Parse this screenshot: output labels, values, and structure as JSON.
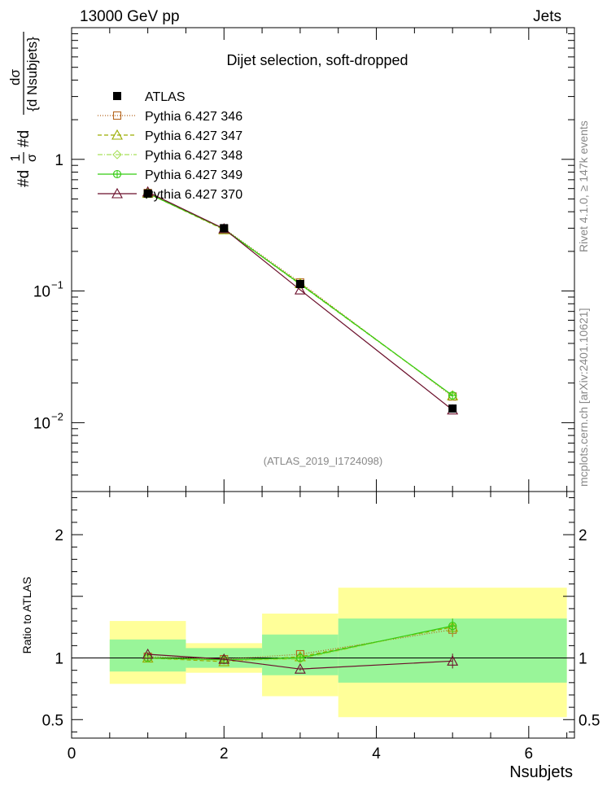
{
  "header": {
    "left": "13000 GeV pp",
    "right": "Jets"
  },
  "main_panel": {
    "title": "Dijet selection, soft-dropped",
    "ylabel": "#d1/σ #d dσ/{d Nsubjets}",
    "ylabel_parts": {
      "frac1_num": "1",
      "frac1_den": "σ",
      "frac2_num": "dσ",
      "frac2_den": "{d Nsubjets}",
      "prefix": "#d",
      "mid": "#d"
    },
    "watermark": "(ATLAS_2019_I1724098)",
    "ylim": [
      0.003,
      10
    ],
    "yticks": [
      {
        "base": "1",
        "exp": ""
      },
      {
        "base": "10",
        "exp": "−1"
      },
      {
        "base": "10",
        "exp": "−2"
      }
    ]
  },
  "ratio_panel": {
    "ylabel": "Ratio to ATLAS",
    "ylim": [
      0.35,
      2.35
    ],
    "yticks": [
      "0.5",
      "1",
      "2"
    ]
  },
  "side_labels": {
    "rivet": "Rivet 4.1.0, ≥ 147k events",
    "mcplots": "mcplots.cern.ch [arXiv:2401.10621]"
  },
  "xaxis": {
    "label": "Nsubjets",
    "xlim": [
      0,
      6.6
    ],
    "ticks": [
      "0",
      "2",
      "4",
      "6"
    ]
  },
  "legend": [
    {
      "label": "ATLAS",
      "color": "#000000",
      "marker": "square-filled"
    },
    {
      "label": "Pythia 6.427 346",
      "color": "#b5651d",
      "marker": "square-open"
    },
    {
      "label": "Pythia 6.427 347",
      "color": "#9aac00",
      "marker": "triangle-open"
    },
    {
      "label": "Pythia 6.427 348",
      "color": "#a8e05a",
      "marker": "diamond-open"
    },
    {
      "label": "Pythia 6.427 349",
      "color": "#33cc11",
      "marker": "plus-circle"
    },
    {
      "label": "Pythia 6.427 370",
      "color": "#6b0f2b",
      "marker": "triangle-open"
    }
  ],
  "chart_data": {
    "type": "line",
    "x": [
      1,
      2,
      3,
      5
    ],
    "data": {
      "name": "ATLAS",
      "values": [
        0.55,
        0.3,
        0.113,
        0.0128
      ],
      "bins": [
        [
          0.5,
          1.5
        ],
        [
          1.5,
          2.5
        ],
        [
          2.5,
          3.5
        ],
        [
          3.5,
          6.5
        ]
      ]
    },
    "series": [
      {
        "name": "Pythia 6.427 346",
        "values": [
          0.555,
          0.298,
          0.116,
          0.0158
        ],
        "ratio": [
          1.01,
          0.99,
          1.03,
          1.23
        ]
      },
      {
        "name": "Pythia 6.427 347",
        "values": [
          0.552,
          0.292,
          0.114,
          0.016
        ],
        "ratio": [
          1.0,
          0.97,
          1.01,
          1.25
        ]
      },
      {
        "name": "Pythia 6.427 348",
        "values": [
          0.551,
          0.294,
          0.112,
          0.016
        ],
        "ratio": [
          1.0,
          0.98,
          0.99,
          1.26
        ]
      },
      {
        "name": "Pythia 6.427 349",
        "values": [
          0.552,
          0.296,
          0.113,
          0.0161
        ],
        "ratio": [
          1.0,
          0.985,
          1.0,
          1.26
        ]
      },
      {
        "name": "Pythia 6.427 370",
        "values": [
          0.565,
          0.297,
          0.102,
          0.0125
        ],
        "ratio": [
          1.03,
          0.99,
          0.91,
          0.975
        ]
      }
    ],
    "ratio_bands": [
      {
        "bin": [
          0.5,
          1.5
        ],
        "inner": [
          0.89,
          1.15
        ],
        "outer": [
          0.79,
          1.3
        ]
      },
      {
        "bin": [
          1.5,
          2.5
        ],
        "inner": [
          0.92,
          1.08
        ],
        "outer": [
          0.88,
          1.12
        ]
      },
      {
        "bin": [
          2.5,
          3.5
        ],
        "inner": [
          0.86,
          1.19
        ],
        "outer": [
          0.69,
          1.36
        ]
      },
      {
        "bin": [
          3.5,
          6.5
        ],
        "inner": [
          0.8,
          1.32
        ],
        "outer": [
          0.52,
          1.57
        ]
      }
    ],
    "xlabel": "Nsubjets",
    "ylabel": "1/σ dσ/d Nsubjets",
    "yscale": "log"
  }
}
